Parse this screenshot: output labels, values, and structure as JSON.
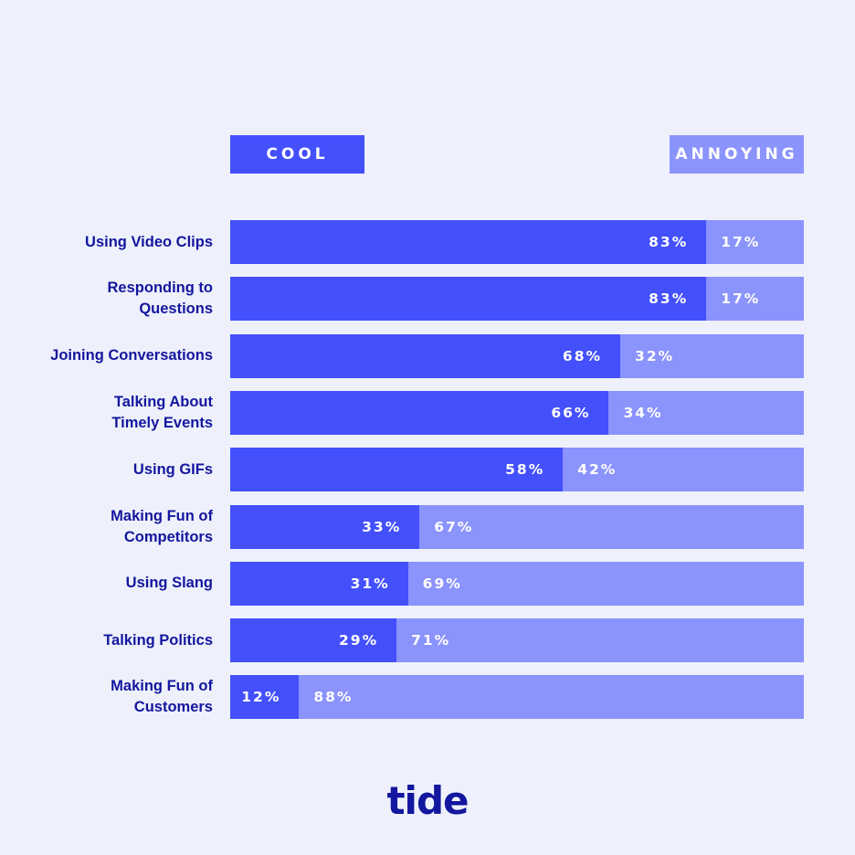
{
  "colors": {
    "background": "#eef1fb",
    "cool": "#4350fc",
    "annoying": "#8b93fc",
    "text": "#13169e",
    "label_text": "#ffffff"
  },
  "legend": {
    "cool": "COOL",
    "annoying": "ANNOYING"
  },
  "chart_data": {
    "type": "bar",
    "orientation": "horizontal",
    "stacked": true,
    "categories": [
      "Using Video Clips",
      "Responding to Questions",
      "Joining Conversations",
      "Talking About Timely Events",
      "Using GIFs",
      "Making Fun of Competitors",
      "Using Slang",
      "Talking Politics",
      "Making Fun of Customers"
    ],
    "category_lines": [
      [
        "Using Video Clips"
      ],
      [
        "Responding to",
        "Questions"
      ],
      [
        "Joining Conversations"
      ],
      [
        "Talking About",
        "Timely Events"
      ],
      [
        "Using GIFs"
      ],
      [
        "Making Fun of",
        "Competitors"
      ],
      [
        "Using Slang"
      ],
      [
        "Talking Politics"
      ],
      [
        "Making Fun of",
        "Customers"
      ]
    ],
    "series": [
      {
        "name": "COOL",
        "values": [
          83,
          83,
          68,
          66,
          58,
          33,
          31,
          29,
          12
        ]
      },
      {
        "name": "ANNOYING",
        "values": [
          17,
          17,
          32,
          34,
          42,
          67,
          69,
          71,
          88
        ]
      }
    ],
    "value_suffix": "%",
    "xlim": [
      0,
      100
    ],
    "grid": false,
    "legend_position": "top"
  },
  "brand": {
    "logo_text": "tide"
  }
}
